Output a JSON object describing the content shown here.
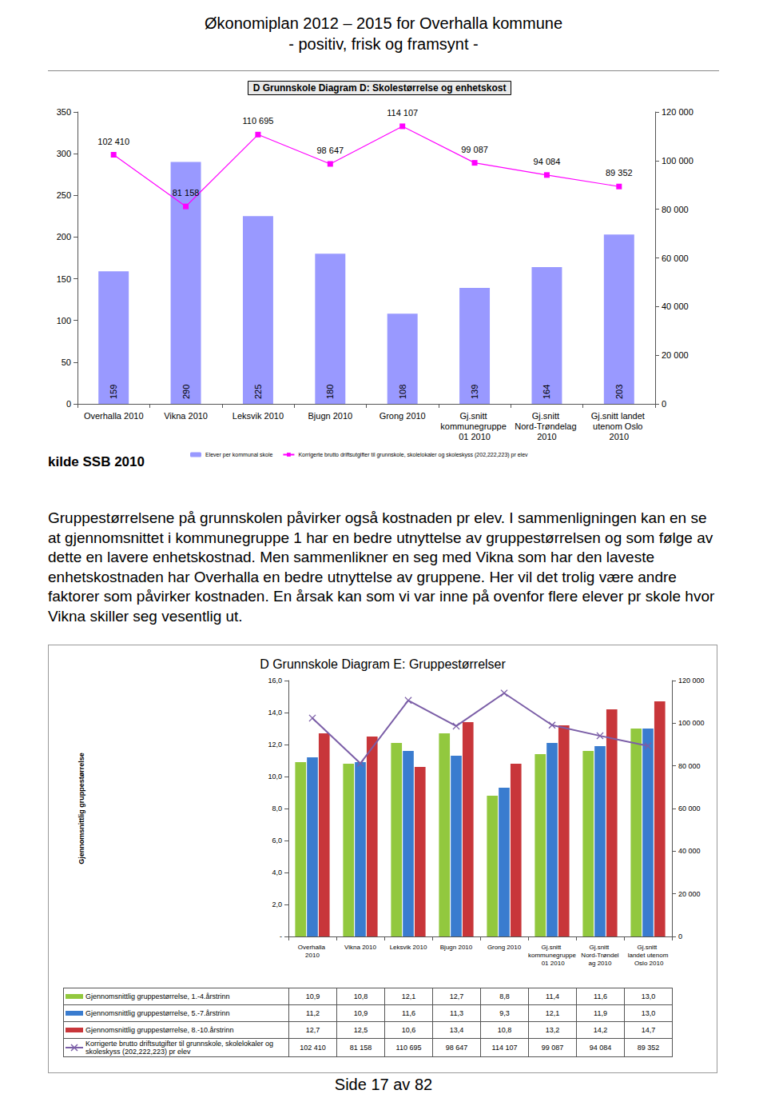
{
  "header": {
    "title": "Økonomiplan 2012 – 2015 for Overhalla kommune",
    "subtitle": "- positiv, frisk og framsynt -"
  },
  "source": "kilde SSB 2010",
  "text": "Gruppestørrelsene på grunnskolen påvirker også kostnaden pr elev. I sammenligningen kan en se at gjennomsnittet i kommunegruppe 1 har en bedre utnyttelse av gruppestørrelsen og som følge av dette en lavere enhetskostnad. Men sammenlikner en seg med Vikna som har den laveste enhetskostnaden har Overhalla en bedre utnyttelse av gruppene. Her vil det trolig være andre faktorer som påvirker kostnaden. En årsak kan som vi var inne på ovenfor flere elever pr skole hvor Vikna skiller seg vesentlig ut.",
  "footer": "Side 17 av 82",
  "chart_data": [
    {
      "type": "bar",
      "title": "D Grunnskole Diagram D: Skolestørrelse og enhetskost",
      "categories": [
        "Overhalla 2010",
        "Vikna 2010",
        "Leksvik 2010",
        "Bjugn 2010",
        "Grong 2010",
        "Gj.snitt kommunegruppe 01 2010",
        "Gj.snitt Nord-Trøndelag 2010",
        "Gj.snitt landet utenom Oslo 2010"
      ],
      "series": [
        {
          "name": "Elever per kommunal skole",
          "type": "bar",
          "color": "#9999ff",
          "data_labels": true,
          "values": [
            159,
            290,
            225,
            180,
            108,
            139,
            164,
            203
          ]
        },
        {
          "name": "Korrigerte brutto driftsutgifter til grunnskole, skolelokaler og skoleskyss (202,222,223) pr elev",
          "type": "line",
          "color": "#ff00ff",
          "marker": "square",
          "axis": "y2",
          "data_labels": true,
          "values": [
            102410,
            81158,
            110695,
            98647,
            114107,
            99087,
            94084,
            89352
          ],
          "value_labels": [
            "102 410",
            "81 158",
            "110 695",
            "98 647",
            "114 107",
            "99 087",
            "94 084",
            "89 352"
          ]
        }
      ],
      "ylim": [
        0,
        350
      ],
      "yticks": [
        0,
        50,
        100,
        150,
        200,
        250,
        300,
        350
      ],
      "y2lim": [
        0,
        120000
      ],
      "y2ticks": [
        0,
        {
          "value": 20000,
          "label": "20 000"
        },
        {
          "value": 40000,
          "label": "40 000"
        },
        {
          "value": 60000,
          "label": "60 000"
        },
        {
          "value": 80000,
          "label": "80 000"
        },
        {
          "value": 100000,
          "label": "100 000"
        },
        {
          "value": 120000,
          "label": "120 000"
        }
      ],
      "legend": "bottom",
      "grid": false
    },
    {
      "type": "bar",
      "title": "D Grunnskole Diagram E: Gruppestørrelser",
      "y_label": "Gjennomsnittlig gruppestørrelse",
      "categories": [
        "Overhalla 2010",
        "Vikna 2010",
        "Leksvik 2010",
        "Bjugn 2010",
        "Grong 2010",
        "Gj.snitt kommunegruppe 01 2010",
        "Gj.snitt Nord-Trøndelag 2010",
        "Gj.snitt landet utenom Oslo 2010"
      ],
      "series": [
        {
          "name": "Gjennomsnittlig gruppestørrelse, 1.-4.årstrinn",
          "type": "bar",
          "color": "#92c83e",
          "values": [
            10.9,
            10.8,
            12.1,
            12.7,
            8.8,
            11.4,
            11.6,
            13.0
          ],
          "value_labels": [
            "10,9",
            "10,8",
            "12,1",
            "12,7",
            "8,8",
            "11,4",
            "11,6",
            "13,0"
          ]
        },
        {
          "name": "Gjennomsnittlig gruppestørrelse, 5.-7.årstrinn",
          "type": "bar",
          "color": "#3a7ccf",
          "values": [
            11.2,
            10.9,
            11.6,
            11.3,
            9.3,
            12.1,
            11.9,
            13.0
          ],
          "value_labels": [
            "11,2",
            "10,9",
            "11,6",
            "11,3",
            "9,3",
            "12,1",
            "11,9",
            "13,0"
          ]
        },
        {
          "name": "Gjennomsnittlig gruppestørrelse, 8.-10.årstrinn",
          "type": "bar",
          "color": "#c8363a",
          "values": [
            12.7,
            12.5,
            10.6,
            13.4,
            10.8,
            13.2,
            14.2,
            14.7
          ],
          "value_labels": [
            "12,7",
            "12,5",
            "10,6",
            "13,4",
            "10,8",
            "13,2",
            "14,2",
            "14,7"
          ]
        },
        {
          "name": "Korrigerte brutto driftsutgifter til grunnskole, skolelokaler og skoleskyss (202,222,223) pr elev",
          "type": "line",
          "color": "#7b5ea7",
          "marker": "x",
          "axis": "y2",
          "values": [
            102410,
            81158,
            110695,
            98647,
            114107,
            99087,
            94084,
            89352
          ],
          "value_labels": [
            "102 410",
            "81 158",
            "110 695",
            "98 647",
            "114 107",
            "99 087",
            "94 084",
            "89 352"
          ]
        }
      ],
      "ylim": [
        0,
        16
      ],
      "yticks": [
        {
          "value": 0,
          "label": "-"
        },
        {
          "value": 2,
          "label": "2,0"
        },
        {
          "value": 4,
          "label": "4,0"
        },
        {
          "value": 6,
          "label": "6,0"
        },
        {
          "value": 8,
          "label": "8,0"
        },
        {
          "value": 10,
          "label": "10,0"
        },
        {
          "value": 12,
          "label": "12,0"
        },
        {
          "value": 14,
          "label": "14,0"
        },
        {
          "value": 16,
          "label": "16,0"
        }
      ],
      "y2lim": [
        0,
        120000
      ],
      "y2ticks": [
        0,
        {
          "value": 20000,
          "label": "20 000"
        },
        {
          "value": 40000,
          "label": "40 000"
        },
        {
          "value": 60000,
          "label": "60 000"
        },
        {
          "value": 80000,
          "label": "80 000"
        },
        {
          "value": 100000,
          "label": "100 000"
        },
        {
          "value": 120000,
          "label": "120 000"
        }
      ],
      "grid": false
    }
  ]
}
